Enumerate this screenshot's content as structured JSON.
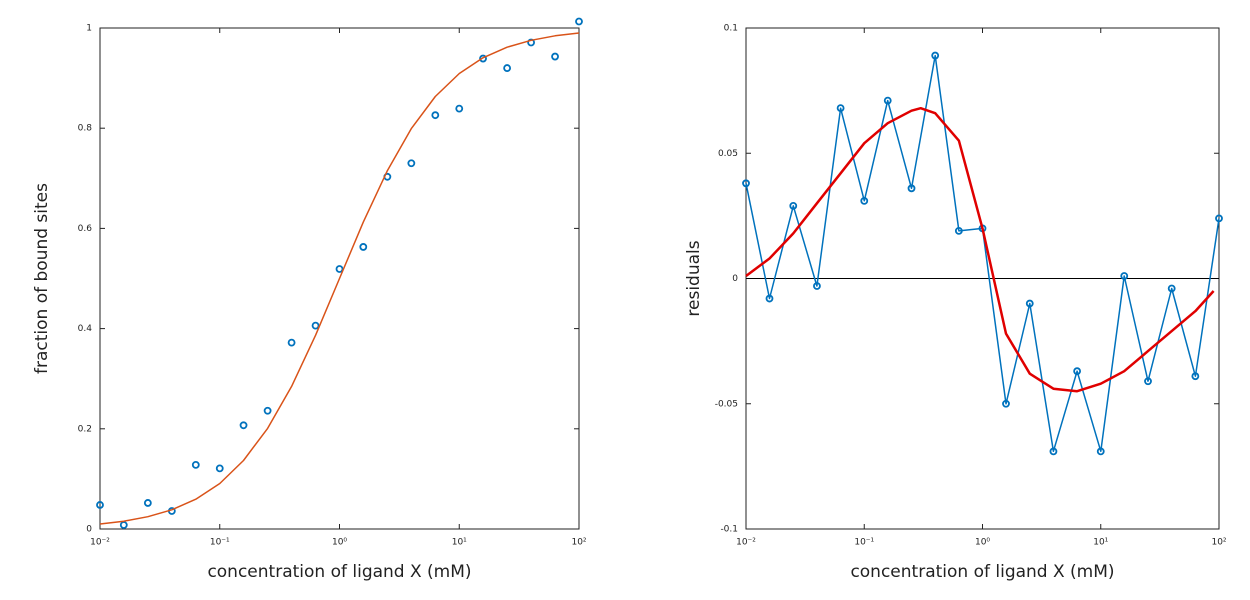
{
  "chart_data": [
    {
      "type": "scatter",
      "xlog": true,
      "xlabel": "concentration of ligand X (mM)",
      "ylabel": "fraction of bound sites",
      "xlim": [
        0.01,
        100
      ],
      "ylim": [
        0,
        1
      ],
      "xticks": [
        {
          "value": 0.01,
          "label": "10⁻²"
        },
        {
          "value": 0.1,
          "label": "10⁻¹"
        },
        {
          "value": 1,
          "label": "10⁰"
        },
        {
          "value": 10,
          "label": "10¹"
        },
        {
          "value": 100,
          "label": "10²"
        }
      ],
      "yticks": [
        0,
        0.2,
        0.4,
        0.6,
        0.8,
        1
      ],
      "series": [
        {
          "style": "markers",
          "color": "#0072bd",
          "x": [
            0.01,
            0.0158,
            0.0251,
            0.0398,
            0.0631,
            0.1,
            0.158,
            0.251,
            0.398,
            0.631,
            1,
            1.58,
            2.51,
            3.98,
            6.31,
            10,
            15.8,
            25.1,
            39.8,
            63.1,
            100
          ],
          "values": [
            0.048,
            0.008,
            0.052,
            0.036,
            0.128,
            0.121,
            0.207,
            0.236,
            0.372,
            0.406,
            0.519,
            0.563,
            0.703,
            0.73,
            0.826,
            0.839,
            0.939,
            0.92,
            0.971,
            0.943,
            1.013
          ]
        },
        {
          "style": "line",
          "color": "#d95319",
          "x": [
            0.01,
            0.0158,
            0.0251,
            0.0398,
            0.0631,
            0.1,
            0.158,
            0.251,
            0.398,
            0.631,
            1,
            1.58,
            2.51,
            3.98,
            6.31,
            10,
            15.8,
            25.1,
            39.8,
            63.1,
            100
          ],
          "values": [
            0.0099,
            0.0156,
            0.0245,
            0.0383,
            0.0594,
            0.0909,
            0.1368,
            0.2007,
            0.2847,
            0.3869,
            0.5,
            0.6126,
            0.7153,
            0.7992,
            0.8632,
            0.9091,
            0.9405,
            0.9617,
            0.9755,
            0.9844,
            0.9901
          ]
        }
      ]
    },
    {
      "type": "line",
      "xlog": true,
      "xlabel": "concentration of ligand X (mM)",
      "ylabel": "residuals",
      "zero_line": true,
      "xlim": [
        0.01,
        100
      ],
      "ylim": [
        -0.1,
        0.1
      ],
      "xticks": [
        {
          "value": 0.01,
          "label": "10⁻²"
        },
        {
          "value": 0.1,
          "label": "10⁻¹"
        },
        {
          "value": 1,
          "label": "10⁰"
        },
        {
          "value": 10,
          "label": "10¹"
        },
        {
          "value": 100,
          "label": "10²"
        }
      ],
      "yticks": [
        -0.1,
        -0.05,
        0,
        0.05,
        0.1
      ],
      "series": [
        {
          "style": "line+markers",
          "color": "#0072bd",
          "x": [
            0.01,
            0.0158,
            0.0251,
            0.0398,
            0.0631,
            0.1,
            0.158,
            0.251,
            0.398,
            0.631,
            1,
            1.58,
            2.51,
            3.98,
            6.31,
            10,
            15.8,
            25.1,
            39.8,
            63.1,
            100
          ],
          "values": [
            0.038,
            -0.008,
            0.029,
            -0.003,
            0.068,
            0.031,
            0.071,
            0.036,
            0.089,
            0.019,
            0.02,
            -0.05,
            -0.01,
            -0.069,
            -0.037,
            -0.069,
            0.001,
            -0.041,
            -0.004,
            -0.039,
            0.024
          ]
        },
        {
          "style": "thick-line",
          "color": "#e00000",
          "x": [
            0.01,
            0.0158,
            0.0251,
            0.0398,
            0.0631,
            0.1,
            0.158,
            0.251,
            0.3,
            0.398,
            0.631,
            1,
            1.58,
            2.51,
            3.98,
            6.31,
            10,
            15.8,
            25.1,
            39.8,
            63.1,
            90
          ],
          "values": [
            0.001,
            0.008,
            0.018,
            0.03,
            0.042,
            0.054,
            0.062,
            0.067,
            0.068,
            0.066,
            0.055,
            0.02,
            -0.022,
            -0.038,
            -0.044,
            -0.045,
            -0.042,
            -0.037,
            -0.029,
            -0.021,
            -0.013,
            -0.005
          ]
        }
      ]
    }
  ]
}
